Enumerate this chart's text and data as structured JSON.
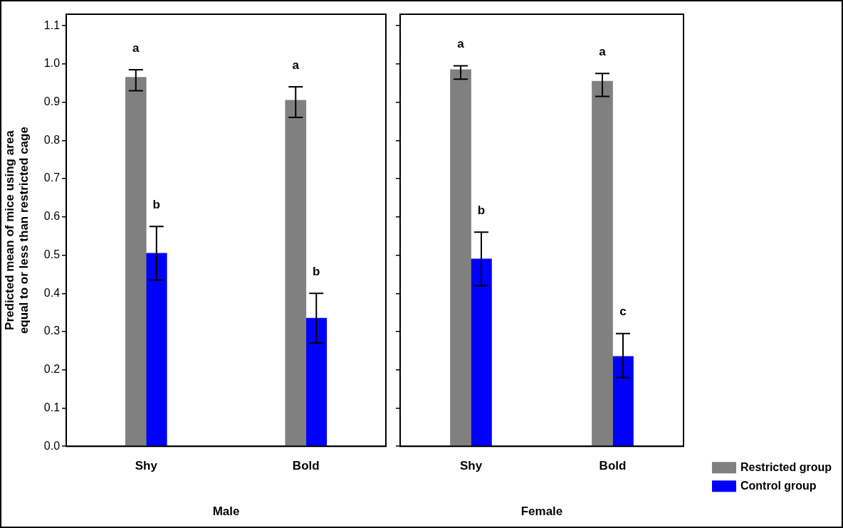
{
  "chart_data": [
    {
      "type": "bar",
      "ylabel": "Predicted mean of mice using area equal to or less than restricted cage",
      "xlabel": "Male",
      "categories": [
        "Shy",
        "Bold"
      ],
      "series": [
        {
          "color": "#808080",
          "values": [
            0.965,
            0.905
          ],
          "errors": [
            [
              0.93,
              0.985
            ],
            [
              0.86,
              0.94
            ]
          ]
        },
        {
          "color": "#0000ff",
          "values": [
            0.505,
            0.335
          ],
          "errors": [
            [
              0.435,
              0.575
            ],
            [
              0.27,
              0.4
            ]
          ]
        }
      ],
      "ylim": [
        0,
        1.13
      ],
      "yticks": [
        {
          "value": 0,
          "label": "0.0"
        },
        {
          "value": 0.1,
          "label": "0.1"
        },
        {
          "value": 0.2,
          "label": "0.2"
        },
        {
          "value": 0.3,
          "label": "0.3"
        },
        {
          "value": 0.4,
          "label": "0.4"
        },
        {
          "value": 0.5,
          "label": "0.5"
        },
        {
          "value": 0.6,
          "label": "0.6"
        },
        {
          "value": 0.7,
          "label": "0.7"
        },
        {
          "value": 0.8,
          "label": "0.8"
        },
        {
          "value": 0.9,
          "label": "0.9"
        },
        {
          "value": 1.0,
          "label": "1.0"
        },
        {
          "value": 1.1,
          "label": "1.1"
        }
      ],
      "grid": false,
      "legend": false,
      "annotations": [
        "a",
        "b",
        "a",
        "b"
      ]
    },
    {
      "type": "bar",
      "xlabel": "Female",
      "categories": [
        "Shy",
        "Bold"
      ],
      "series": [
        {
          "name": "Restricted group",
          "color": "#808080",
          "values": [
            0.985,
            0.955
          ],
          "errors": [
            [
              0.96,
              0.995
            ],
            [
              0.915,
              0.975
            ]
          ]
        },
        {
          "name": "Control group",
          "color": "#0000ff",
          "values": [
            0.49,
            0.235
          ],
          "errors": [
            [
              0.42,
              0.56
            ],
            [
              0.18,
              0.295
            ]
          ]
        }
      ],
      "ylim": [
        0,
        1.13
      ],
      "yticks": [
        {
          "value": 0,
          "label": null
        },
        {
          "value": 0.1,
          "label": null
        },
        {
          "value": 0.2,
          "label": null
        },
        {
          "value": 0.3,
          "label": null
        },
        {
          "value": 0.4,
          "label": null
        },
        {
          "value": 0.5,
          "label": null
        },
        {
          "value": 0.6,
          "label": null
        },
        {
          "value": 0.7,
          "label": null
        },
        {
          "value": 0.8,
          "label": null
        },
        {
          "value": 0.9,
          "label": null
        },
        {
          "value": 1.0,
          "label": null
        },
        {
          "value": 1.1,
          "label": null
        }
      ],
      "grid": false,
      "legend": "bottom right",
      "tick_labels": "x",
      "annotations": [
        "a",
        "b",
        "a",
        "c"
      ]
    }
  ]
}
